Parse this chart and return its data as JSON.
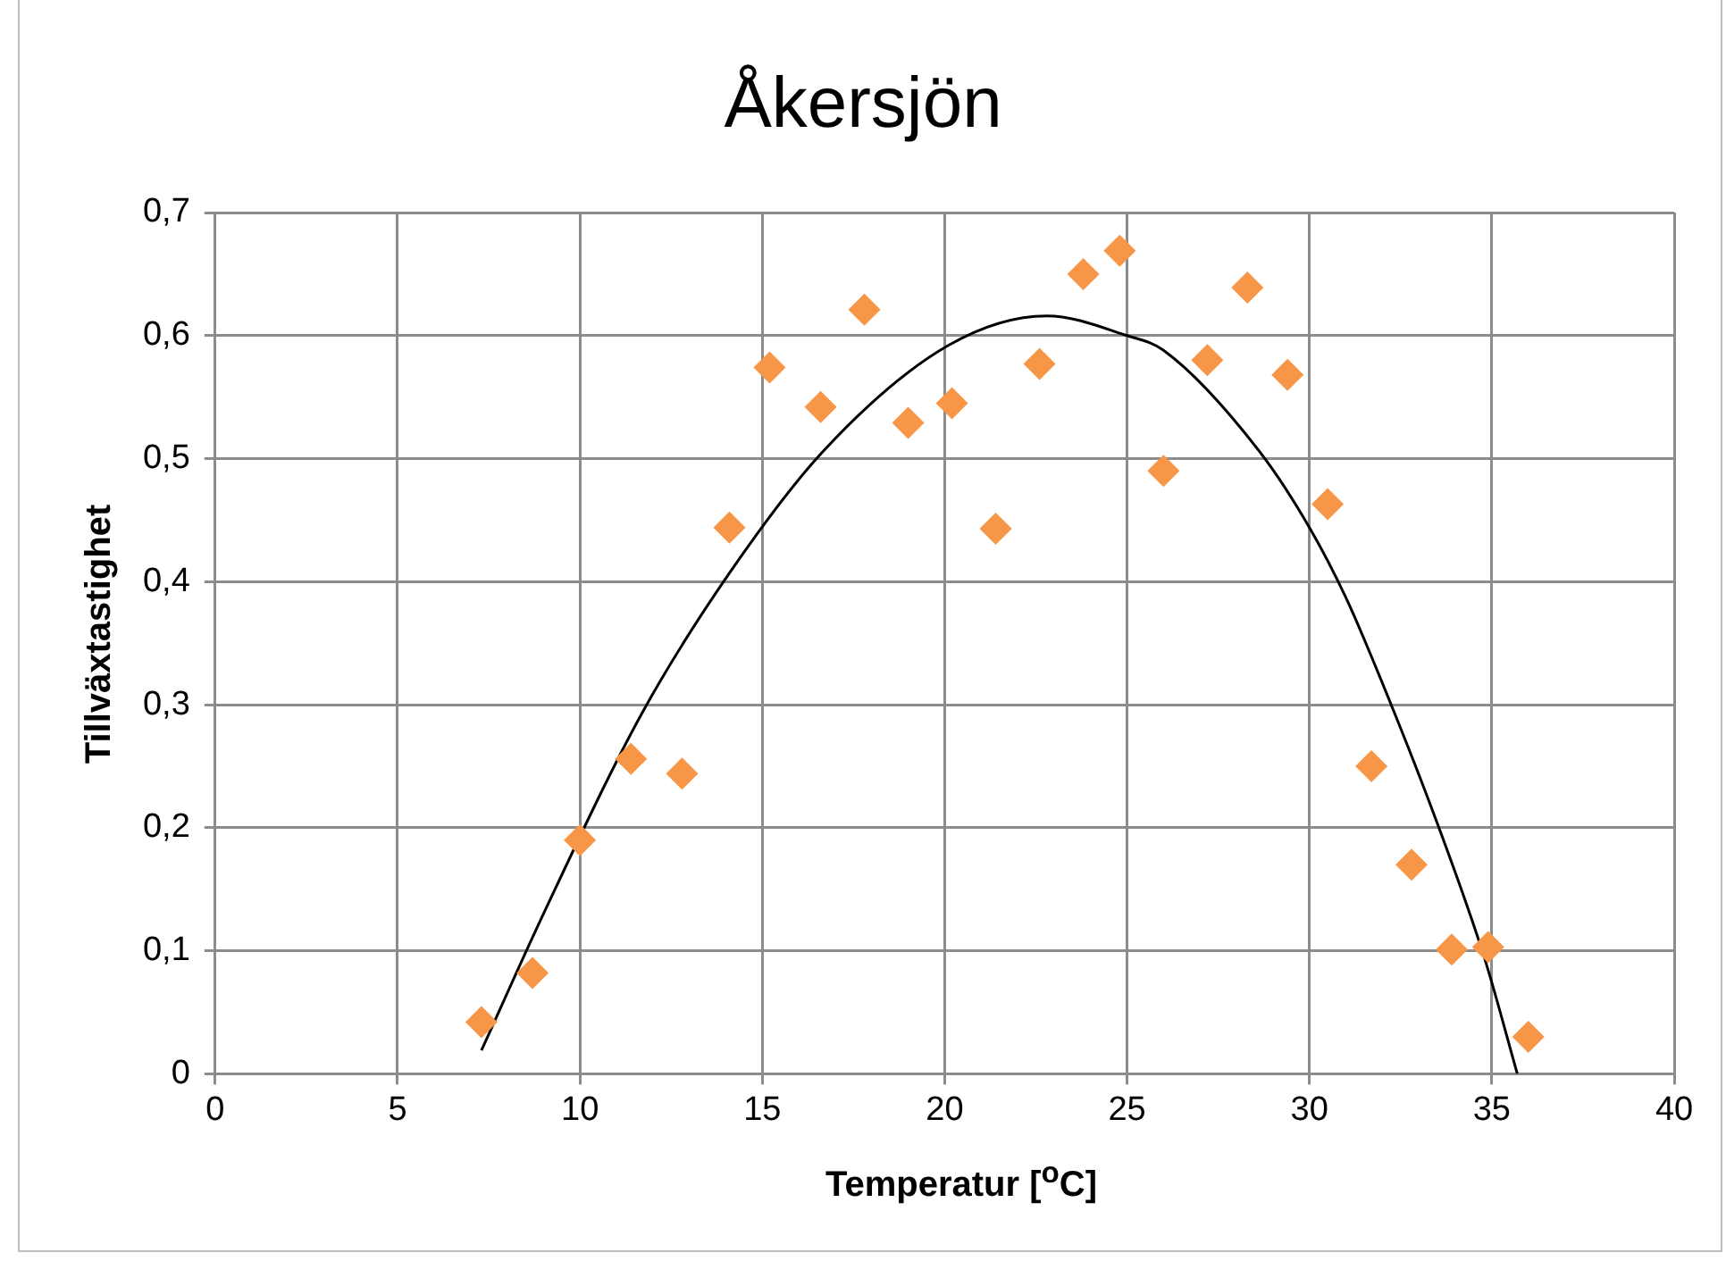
{
  "chart_data": {
    "type": "scatter",
    "title": "Åkersjön",
    "xlabel": "Temperatur [$^{o}$C]",
    "ylabel": "Tillväxtastighet",
    "xlim": [
      0,
      40
    ],
    "xticks": [
      0,
      5,
      10,
      15,
      20,
      25,
      30,
      35,
      40
    ],
    "ylim": [
      0,
      0.7
    ],
    "yticks": [
      0,
      {
        "value": 0.1,
        "label": "0,1"
      },
      {
        "value": 0.2,
        "label": "0,2"
      },
      {
        "value": 0.3,
        "label": "0,3"
      },
      {
        "value": 0.4,
        "label": "0,4"
      },
      {
        "value": 0.5,
        "label": "0,5"
      },
      {
        "value": 0.6,
        "label": "0,6"
      },
      {
        "value": 0.7,
        "label": "0,7"
      }
    ],
    "grid": true,
    "legend": false,
    "series": [
      {
        "type": "scatter",
        "color": "#f79646",
        "marker": "diamond",
        "x": [
          7.3,
          8.7,
          10.0,
          11.4,
          12.8,
          14.1,
          15.2,
          16.6,
          17.8,
          19.0,
          20.2,
          21.4,
          22.6,
          23.8,
          24.8,
          26.0,
          27.2,
          28.3,
          29.4,
          30.5,
          31.7,
          32.8,
          33.9,
          34.9,
          36.0
        ],
        "values": [
          0.042,
          0.082,
          0.19,
          0.256,
          0.244,
          0.444,
          0.574,
          0.542,
          0.621,
          0.529,
          0.545,
          0.443,
          0.577,
          0.65,
          0.669,
          0.49,
          0.58,
          0.639,
          0.568,
          0.463,
          0.25,
          0.17,
          0.101,
          0.103,
          0.03
        ]
      },
      {
        "type": "line",
        "color": "#000000",
        "marker": "none",
        "x": [
          7.3,
          9.0,
          11.7,
          14.1,
          16.7,
          20.1,
          22.8,
          25.0,
          26.0,
          28.6,
          30.0,
          31.0,
          32.2,
          33.5,
          34.8,
          35.7
        ],
        "values": [
          0.019,
          0.13,
          0.293,
          0.407,
          0.507,
          0.592,
          0.616,
          0.6,
          0.588,
          0.507,
          0.444,
          0.387,
          0.303,
          0.204,
          0.094,
          0.0
        ]
      }
    ]
  }
}
